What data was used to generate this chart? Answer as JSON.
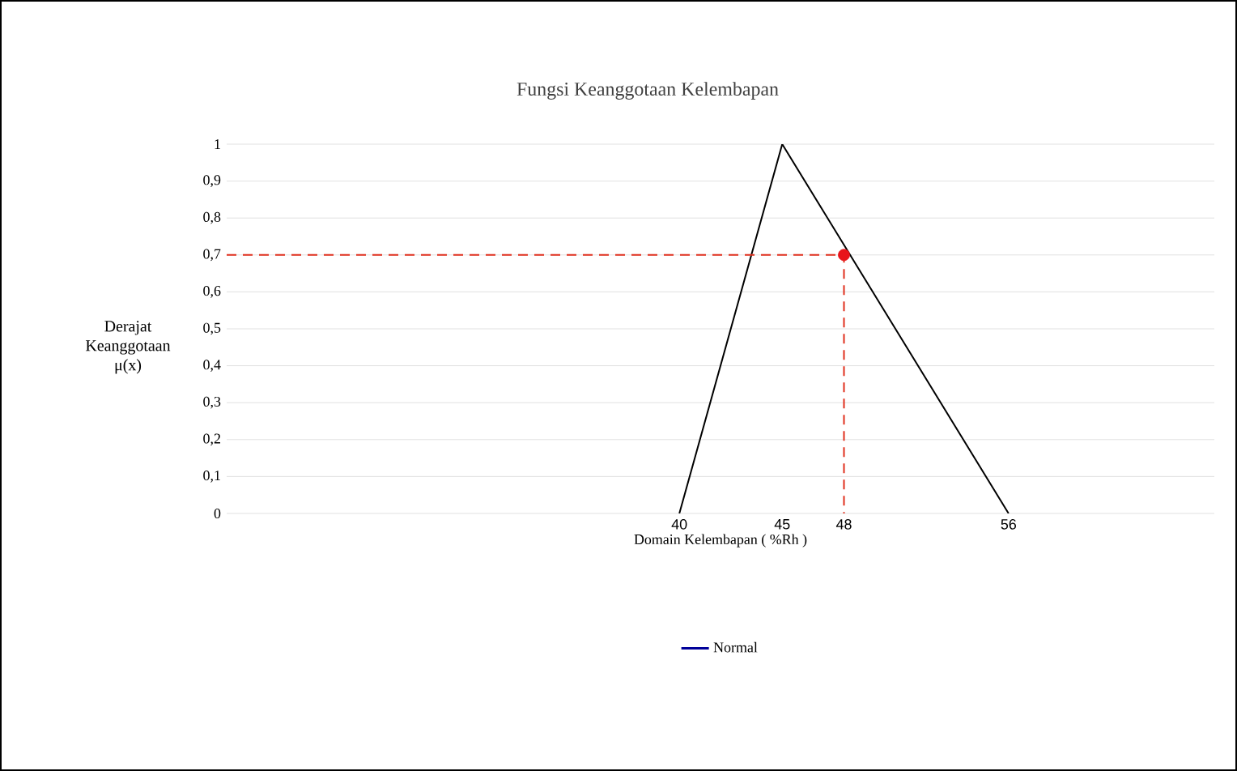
{
  "chart_data": {
    "type": "line",
    "title": "Fungsi Keanggotaan Kelembapan",
    "xlabel": "Domain Kelembapan ( %Rh )",
    "ylabel": "Derajat Keanggotaan μ(x)",
    "series": [
      {
        "name": "Normal",
        "color": "#000000",
        "x": [
          40,
          45,
          56
        ],
        "values": [
          0,
          1,
          0
        ],
        "line_style": "solid",
        "marker": "none"
      },
      {
        "color": "#e0301e",
        "x": [
          18,
          48,
          48
        ],
        "values": [
          0.7,
          0.7,
          0
        ],
        "line_style": "dashed",
        "marker": "none"
      },
      {
        "type": "scatter",
        "color": "#e8141a",
        "x": [
          48
        ],
        "values": [
          0.7
        ],
        "marker": "circle"
      }
    ],
    "xlim": [
      18,
      66
    ],
    "xticks": [
      40,
      45,
      48,
      56
    ],
    "ylim": [
      0,
      1
    ],
    "yticks": [
      0,
      {
        "value": 0.1,
        "label": "0,1"
      },
      {
        "value": 0.2,
        "label": "0,2"
      },
      {
        "value": 0.3,
        "label": "0,3"
      },
      {
        "value": 0.4,
        "label": "0,4"
      },
      {
        "value": 0.5,
        "label": "0,5"
      },
      {
        "value": 0.6,
        "label": "0,6"
      },
      {
        "value": 0.7,
        "label": "0,7"
      },
      {
        "value": 0.8,
        "label": "0,8"
      },
      {
        "value": 0.9,
        "label": "0,9"
      },
      1
    ],
    "grid": "y",
    "legend": "bottom"
  }
}
